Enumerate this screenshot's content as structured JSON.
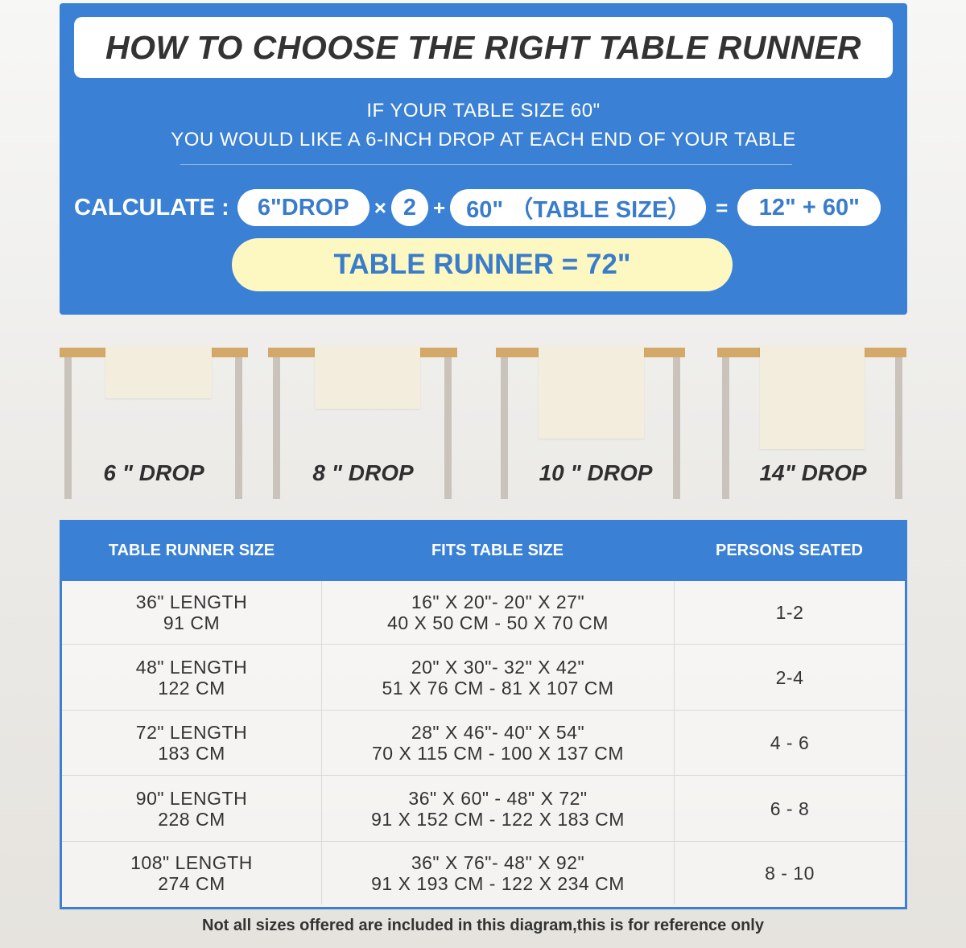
{
  "header": {
    "title": "HOW TO CHOOSE THE RIGHT TABLE RUNNER",
    "line1": "IF YOUR TABLE SIZE 60\"",
    "line2": "YOU WOULD LIKE A 6-INCH DROP AT EACH END OF YOUR TABLE"
  },
  "calc": {
    "label": "CALCULATE :",
    "drop": "6\"DROP",
    "times": "×",
    "multiplier": "2",
    "plus": "+",
    "table_size": "60\" （TABLE SIZE）",
    "equals": "=",
    "sum": "12\" + 60\"",
    "result": "TABLE RUNNER = 72\""
  },
  "colors": {
    "primary": "#3a80d4",
    "highlight": "#fdf8c2",
    "tabletop": "#d4a868",
    "runner": "#f2eddd"
  },
  "drops": [
    "6 \" DROP",
    "8 \" DROP",
    "10 \" DROP",
    "14\" DROP"
  ],
  "size_table": {
    "headers": [
      "TABLE RUNNER SIZE",
      "FITS TABLE SIZE",
      "PERSONS SEATED"
    ],
    "rows": [
      {
        "size": [
          "36\" LENGTH",
          "91 CM"
        ],
        "fits": [
          "16\" X 20\"- 20\" X 27\"",
          "40 X 50 CM - 50 X 70 CM"
        ],
        "persons": "1-2"
      },
      {
        "size": [
          "48\" LENGTH",
          "122 CM"
        ],
        "fits": [
          "20\" X 30\"- 32\" X 42\"",
          "51 X 76 CM - 81 X 107 CM"
        ],
        "persons": "2-4"
      },
      {
        "size": [
          "72\" LENGTH",
          "183 CM"
        ],
        "fits": [
          "28\" X 46\"- 40\" X 54\"",
          "70 X 115 CM - 100 X 137 CM"
        ],
        "persons": "4 - 6"
      },
      {
        "size": [
          "90\" LENGTH",
          "228 CM"
        ],
        "fits": [
          "36\" X 60\" - 48\" X 72\"",
          "91 X 152 CM - 122 X 183 CM"
        ],
        "persons": "6 - 8"
      },
      {
        "size": [
          "108\" LENGTH",
          "274 CM"
        ],
        "fits": [
          "36\" X 76\"- 48\" X 92\"",
          "91 X 193 CM - 122 X 234 CM"
        ],
        "persons": "8 - 10"
      }
    ]
  },
  "footnote": "Not all sizes offered are included in this diagram,this is for reference only"
}
